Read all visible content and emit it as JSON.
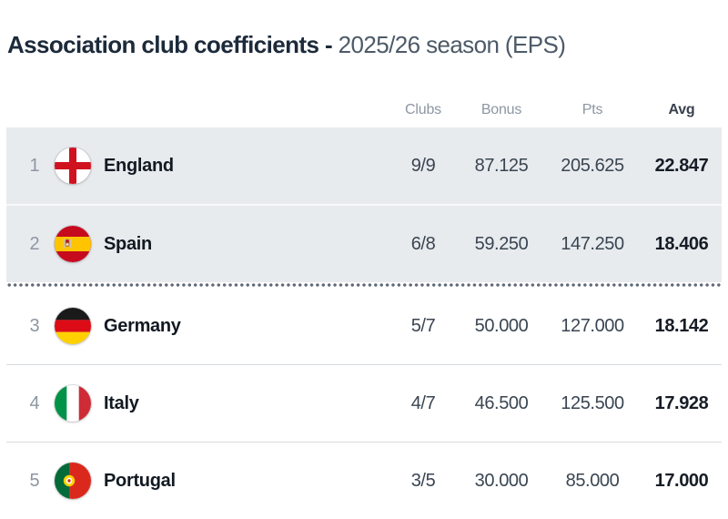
{
  "title": {
    "main": "Association club coefficients - ",
    "sub": "2025/26 season (EPS)"
  },
  "table": {
    "headers": {
      "clubs": "Clubs",
      "bonus": "Bonus",
      "pts": "Pts",
      "avg": "Avg"
    },
    "rows": [
      {
        "rank": "1",
        "country": "England",
        "flag": "england",
        "clubs": "9/9",
        "bonus": "87.125",
        "pts": "205.625",
        "avg": "22.847",
        "highlighted": true,
        "cutoff_after": false
      },
      {
        "rank": "2",
        "country": "Spain",
        "flag": "spain",
        "clubs": "6/8",
        "bonus": "59.250",
        "pts": "147.250",
        "avg": "18.406",
        "highlighted": true,
        "cutoff_after": true
      },
      {
        "rank": "3",
        "country": "Germany",
        "flag": "germany",
        "clubs": "5/7",
        "bonus": "50.000",
        "pts": "127.000",
        "avg": "18.142",
        "highlighted": false,
        "cutoff_after": false
      },
      {
        "rank": "4",
        "country": "Italy",
        "flag": "italy",
        "clubs": "4/7",
        "bonus": "46.500",
        "pts": "125.500",
        "avg": "17.928",
        "highlighted": false,
        "cutoff_after": false
      },
      {
        "rank": "5",
        "country": "Portugal",
        "flag": "portugal",
        "clubs": "3/5",
        "bonus": "30.000",
        "pts": "85.000",
        "avg": "17.000",
        "highlighted": false,
        "cutoff_after": false
      }
    ]
  },
  "colors": {
    "title_main": "#1c2a3a",
    "title_sub": "#4d5a68",
    "header_text": "#8c96a2",
    "row_highlight": "#e8ebee",
    "cutoff_dots": "#5f6a76"
  }
}
